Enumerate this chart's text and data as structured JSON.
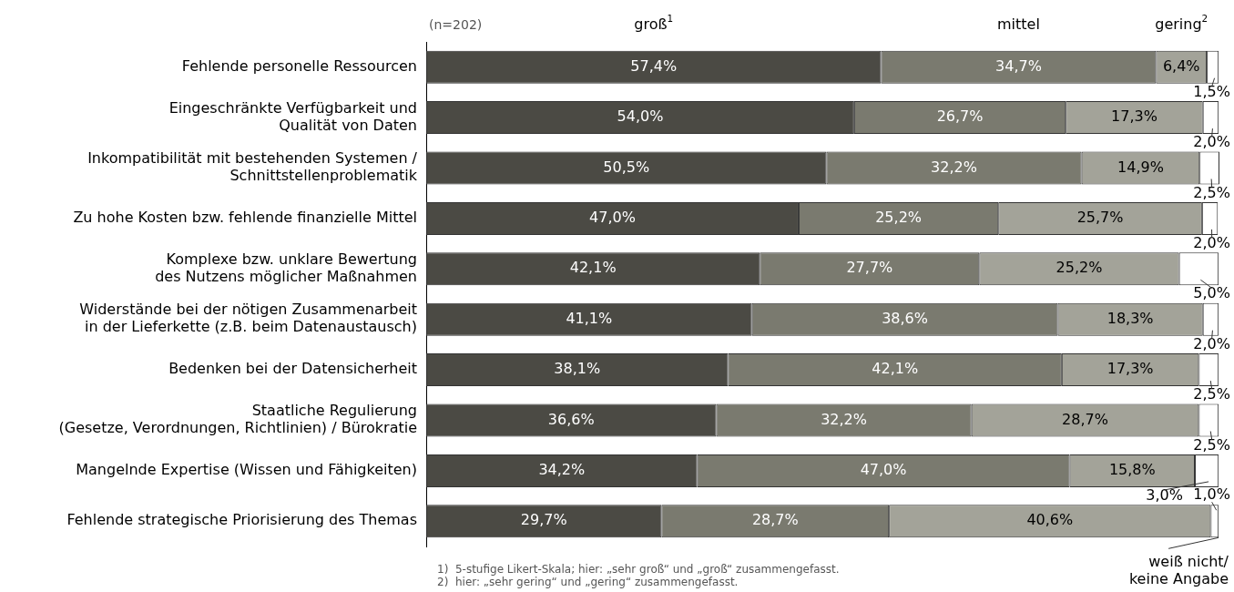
{
  "chart_data": {
    "type": "bar",
    "orientation": "horizontal",
    "stacked": true,
    "data_labels": true,
    "legend": false,
    "categories": [
      "Fehlende personelle Ressourcen",
      "Eingeschränkte Verfügbarkeit und\nQualität von Daten",
      "Inkompatibilität mit bestehenden Systemen /\nSchnittstellenproblematik",
      "Zu hohe Kosten bzw. fehlende finanzielle Mittel",
      "Komplexe bzw. unklare Bewertung\ndes Nutzens möglicher Maßnahmen",
      "Widerstände bei der nötigen Zusammenarbeit\nin der Lieferkette (z.B. beim Datenaustausch)",
      "Bedenken bei der Datensicherheit",
      "Staatliche Regulierung\n(Gesetze, Verordnungen, Richtlinien) / Bürokratie",
      "Mangelnde Expertise (Wissen und Fähigkeiten)",
      "Fehlende strategische Priorisierung des Themas"
    ],
    "xlim": [
      0,
      100.1
    ],
    "series": [
      {
        "name": "groß$^{1}$",
        "color": "#4b4a44",
        "values": [
          57.4,
          54.0,
          50.5,
          47.0,
          42.1,
          41.1,
          38.1,
          36.6,
          34.2,
          29.7
        ],
        "value_labels": [
          "57,4%",
          "54,0%",
          "50,5%",
          "47,0%",
          "42,1%",
          "41,1%",
          "38,1%",
          "36,6%",
          "34,2%",
          "29,7%"
        ]
      },
      {
        "name": "mittel",
        "color": "#7a7a6f",
        "values": [
          34.7,
          26.7,
          32.2,
          25.2,
          27.7,
          38.6,
          42.1,
          32.2,
          47.0,
          28.7
        ],
        "value_labels": [
          "34,7%",
          "26,7%",
          "32,2%",
          "25,2%",
          "27,7%",
          "38,6%",
          "42,1%",
          "32,2%",
          "47,0%",
          "28,7%"
        ]
      },
      {
        "name": "gering$^{2}$",
        "color": "#a3a399",
        "values": [
          6.4,
          17.3,
          14.9,
          25.7,
          25.2,
          18.3,
          17.3,
          28.7,
          15.8,
          40.6
        ],
        "value_labels": [
          "6,4%",
          "17,3%",
          "14,9%",
          "25,7%",
          "25,2%",
          "18,3%",
          "17,3%",
          "28,7%",
          "15,8%",
          "40,6%"
        ]
      },
      {
        "name": "weiß nicht/\nkeine Angabe",
        "color": "#ffffff",
        "values": [
          1.5,
          2.0,
          2.5,
          2.0,
          5.0,
          2.0,
          2.5,
          2.5,
          3.0,
          1.0
        ],
        "value_labels": [
          "1,5%",
          "2,0%",
          "2,5%",
          "2,0%",
          "5,0%",
          "2,0%",
          "2,5%",
          "2,5%",
          "3,0%",
          "1,0%"
        ]
      }
    ],
    "annotations": [
      "(n=202)",
      "1)  5-stufige Likert-Skala; hier: „sehr groß“ und „groß“ zusammengefasst.",
      "2)  hier: „sehr gering“ und „gering“ zusammengefasst."
    ]
  }
}
